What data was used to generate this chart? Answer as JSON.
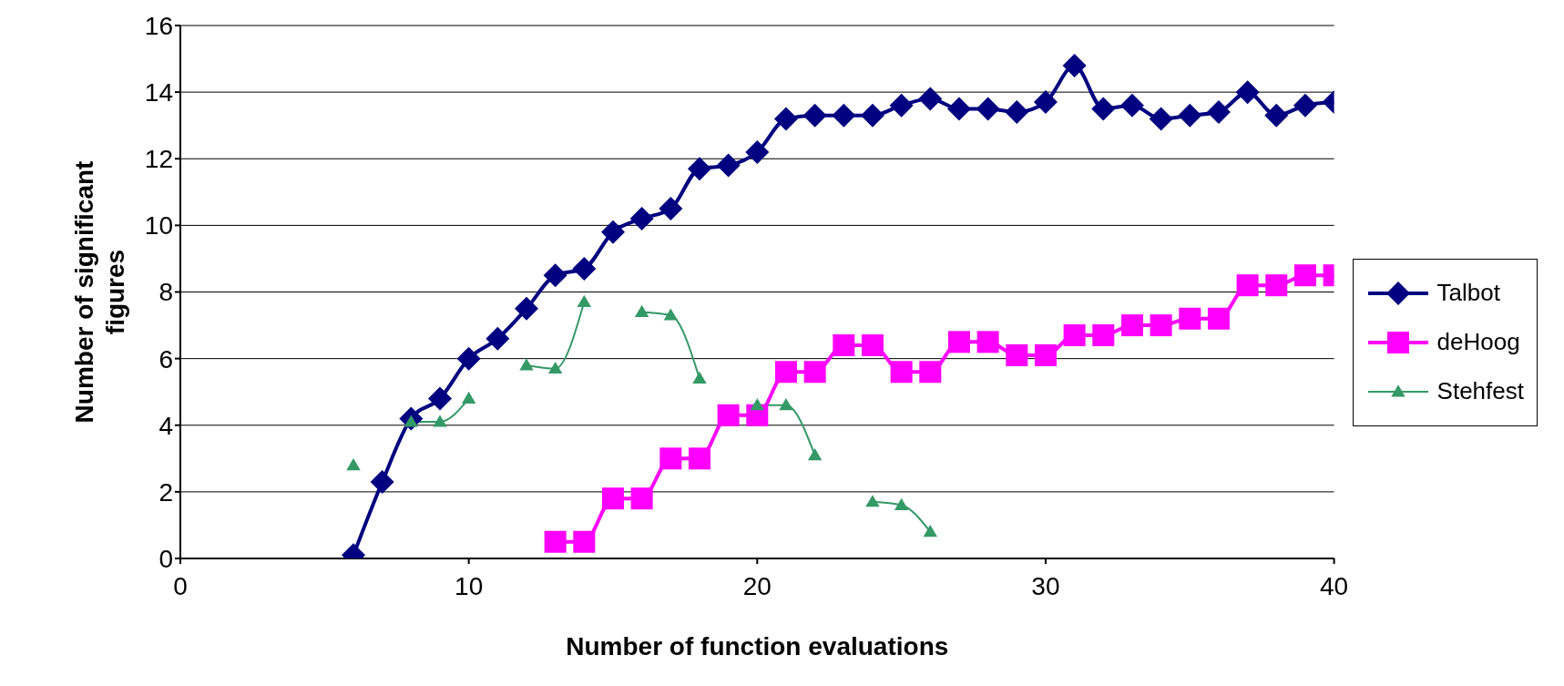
{
  "chart_data": {
    "type": "line",
    "xlabel": "Number of function evaluations",
    "ylabel": "Number of significant figures",
    "xlim": [
      0,
      40
    ],
    "xticks": [
      0,
      10,
      20,
      30,
      40
    ],
    "ylim": [
      0,
      16
    ],
    "yticks": [
      0,
      2,
      4,
      6,
      8,
      10,
      12,
      14,
      16
    ],
    "grid": "y",
    "legend": "right",
    "series": [
      {
        "name": "Talbot",
        "color": "#000080",
        "marker": "diamond",
        "x": [
          6,
          7,
          8,
          9,
          10,
          11,
          12,
          13,
          14,
          15,
          16,
          17,
          18,
          19,
          20,
          21,
          22,
          23,
          24,
          25,
          26,
          27,
          28,
          29,
          30,
          31,
          32,
          33,
          34,
          35,
          36,
          37,
          38,
          39,
          40
        ],
        "values": [
          0.1,
          2.3,
          4.2,
          4.8,
          6.0,
          6.6,
          7.5,
          8.5,
          8.7,
          9.8,
          10.2,
          10.5,
          11.7,
          11.8,
          12.2,
          13.2,
          13.3,
          13.3,
          13.3,
          13.6,
          13.8,
          13.5,
          13.5,
          13.4,
          13.7,
          14.8,
          13.5,
          13.6,
          13.2,
          13.3,
          13.4,
          14.0,
          13.3,
          13.6,
          13.7
        ]
      },
      {
        "name": "deHoog",
        "color": "#ff00ff",
        "marker": "square",
        "x": [
          13,
          14,
          15,
          16,
          17,
          18,
          19,
          20,
          21,
          22,
          23,
          24,
          25,
          26,
          27,
          28,
          29,
          30,
          31,
          32,
          33,
          34,
          35,
          36,
          37,
          38,
          39,
          40
        ],
        "values": [
          0.5,
          0.5,
          1.8,
          1.8,
          3.0,
          3.0,
          4.3,
          4.3,
          5.6,
          5.6,
          6.4,
          6.4,
          5.6,
          5.6,
          6.5,
          6.5,
          6.1,
          6.1,
          6.7,
          6.7,
          7.0,
          7.0,
          7.2,
          7.2,
          8.2,
          8.2,
          8.5,
          8.5
        ]
      },
      {
        "name": "Stehfest",
        "color": "#339966",
        "marker": "triangle",
        "x": [
          6,
          7,
          8,
          9,
          10,
          11,
          12,
          13,
          14,
          15,
          16,
          17,
          18,
          19,
          20,
          21,
          22,
          23,
          24,
          25,
          26
        ],
        "values": [
          2.8,
          null,
          4.1,
          4.1,
          4.8,
          null,
          5.8,
          5.7,
          7.7,
          null,
          7.4,
          7.3,
          5.4,
          null,
          4.6,
          4.6,
          3.1,
          null,
          1.7,
          1.6,
          0.8
        ]
      }
    ]
  }
}
